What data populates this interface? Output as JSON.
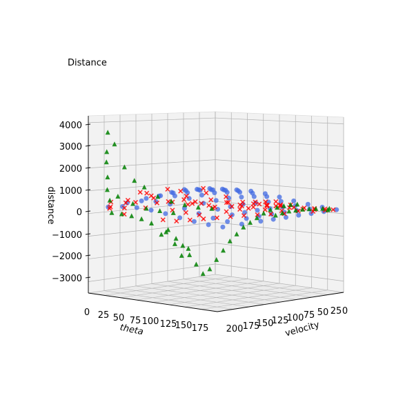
{
  "chart_data": {
    "type": "scatter3d",
    "title": "Distance",
    "xlabel": "theta",
    "ylabel": "velocity",
    "zlabel": "distance",
    "x_ticks": [
      "0",
      "25",
      "50",
      "75",
      "100",
      "125",
      "150",
      "175"
    ],
    "y_ticks": [
      "200",
      "175",
      "150",
      "125",
      "100",
      "75",
      "50",
      "25",
      "0"
    ],
    "z_ticks": [
      "4000",
      "3000",
      "2000",
      "1000",
      "0",
      "−1000",
      "−2000",
      "−3000"
    ],
    "xlim": [
      0,
      180
    ],
    "ylim": [
      0,
      200
    ],
    "zlim": [
      -3500,
      4300
    ],
    "grid": true,
    "colors": {
      "surface": "#4169e1",
      "red_series": "#ff0000",
      "green_series": "#008000",
      "pane": "#f2f2f2",
      "grid": "#b0b0b0"
    },
    "series": [
      {
        "marker": "circle",
        "color": "#4169e1",
        "points": [
          [
            10,
            0,
            200
          ],
          [
            10,
            20,
            300
          ],
          [
            10,
            40,
            350
          ],
          [
            10,
            60,
            420
          ],
          [
            10,
            80,
            380
          ],
          [
            10,
            100,
            300
          ],
          [
            10,
            120,
            280
          ],
          [
            10,
            150,
            210
          ],
          [
            10,
            180,
            150
          ],
          [
            30,
            0,
            250
          ],
          [
            30,
            20,
            330
          ],
          [
            30,
            40,
            420
          ],
          [
            30,
            60,
            500
          ],
          [
            30,
            80,
            540
          ],
          [
            30,
            100,
            520
          ],
          [
            30,
            120,
            480
          ],
          [
            30,
            150,
            380
          ],
          [
            30,
            180,
            260
          ],
          [
            50,
            0,
            280
          ],
          [
            50,
            20,
            380
          ],
          [
            50,
            40,
            480
          ],
          [
            50,
            60,
            580
          ],
          [
            50,
            80,
            640
          ],
          [
            50,
            100,
            620
          ],
          [
            50,
            120,
            560
          ],
          [
            50,
            150,
            440
          ],
          [
            50,
            180,
            300
          ],
          [
            70,
            0,
            260
          ],
          [
            70,
            20,
            360
          ],
          [
            70,
            40,
            480
          ],
          [
            70,
            60,
            560
          ],
          [
            70,
            80,
            620
          ],
          [
            70,
            100,
            600
          ],
          [
            70,
            120,
            540
          ],
          [
            70,
            150,
            420
          ],
          [
            70,
            180,
            280
          ],
          [
            90,
            0,
            200
          ],
          [
            90,
            20,
            300
          ],
          [
            90,
            40,
            380
          ],
          [
            90,
            60,
            440
          ],
          [
            90,
            80,
            480
          ],
          [
            90,
            100,
            460
          ],
          [
            90,
            120,
            420
          ],
          [
            90,
            150,
            320
          ],
          [
            90,
            180,
            220
          ],
          [
            110,
            0,
            120
          ],
          [
            110,
            20,
            180
          ],
          [
            110,
            40,
            240
          ],
          [
            110,
            60,
            280
          ],
          [
            110,
            80,
            300
          ],
          [
            110,
            100,
            280
          ],
          [
            110,
            120,
            250
          ],
          [
            110,
            150,
            190
          ],
          [
            110,
            180,
            130
          ],
          [
            130,
            0,
            60
          ],
          [
            130,
            20,
            80
          ],
          [
            130,
            40,
            100
          ],
          [
            130,
            60,
            120
          ],
          [
            130,
            80,
            130
          ],
          [
            130,
            100,
            120
          ],
          [
            130,
            120,
            100
          ],
          [
            130,
            150,
            80
          ],
          [
            130,
            180,
            60
          ],
          [
            150,
            0,
            20
          ],
          [
            150,
            20,
            30
          ],
          [
            150,
            40,
            40
          ],
          [
            150,
            60,
            50
          ],
          [
            150,
            80,
            50
          ],
          [
            150,
            100,
            40
          ],
          [
            150,
            120,
            30
          ],
          [
            150,
            150,
            20
          ],
          [
            150,
            180,
            10
          ],
          [
            170,
            0,
            0
          ],
          [
            170,
            20,
            0
          ],
          [
            170,
            40,
            0
          ],
          [
            170,
            60,
            10
          ],
          [
            170,
            80,
            0
          ],
          [
            170,
            100,
            0
          ],
          [
            170,
            120,
            0
          ],
          [
            170,
            150,
            0
          ],
          [
            170,
            180,
            0
          ]
        ]
      },
      {
        "marker": "x",
        "color": "#ff0000",
        "points": [
          [
            5,
            170,
            300
          ],
          [
            8,
            150,
            200
          ],
          [
            12,
            180,
            100
          ],
          [
            15,
            160,
            50
          ],
          [
            18,
            130,
            -50
          ],
          [
            22,
            190,
            250
          ],
          [
            25,
            120,
            150
          ],
          [
            28,
            175,
            -100
          ],
          [
            32,
            110,
            200
          ],
          [
            35,
            165,
            400
          ],
          [
            38,
            140,
            500
          ],
          [
            42,
            185,
            600
          ],
          [
            45,
            100,
            300
          ],
          [
            48,
            155,
            700
          ],
          [
            52,
            90,
            200
          ],
          [
            55,
            170,
            900
          ],
          [
            58,
            120,
            800
          ],
          [
            62,
            145,
            1000
          ],
          [
            65,
            80,
            300
          ],
          [
            68,
            195,
            1100
          ],
          [
            72,
            100,
            900
          ],
          [
            75,
            130,
            700
          ],
          [
            78,
            70,
            200
          ],
          [
            82,
            160,
            600
          ],
          [
            85,
            110,
            800
          ],
          [
            88,
            60,
            100
          ],
          [
            92,
            140,
            500
          ],
          [
            95,
            90,
            600
          ],
          [
            98,
            50,
            150
          ],
          [
            102,
            125,
            400
          ],
          [
            105,
            75,
            350
          ],
          [
            108,
            40,
            100
          ],
          [
            112,
            100,
            300
          ],
          [
            115,
            60,
            250
          ],
          [
            118,
            30,
            50
          ],
          [
            122,
            85,
            200
          ],
          [
            125,
            45,
            150
          ],
          [
            128,
            20,
            0
          ],
          [
            132,
            70,
            120
          ],
          [
            135,
            35,
            80
          ],
          [
            138,
            15,
            0
          ],
          [
            142,
            55,
            60
          ],
          [
            145,
            25,
            20
          ],
          [
            148,
            10,
            0
          ],
          [
            152,
            40,
            30
          ],
          [
            155,
            18,
            10
          ],
          [
            158,
            5,
            0
          ],
          [
            162,
            28,
            10
          ],
          [
            165,
            12,
            0
          ],
          [
            168,
            3,
            0
          ],
          [
            20,
            90,
            -300
          ],
          [
            30,
            80,
            -400
          ],
          [
            40,
            70,
            -500
          ],
          [
            50,
            60,
            -200
          ],
          [
            60,
            50,
            -350
          ],
          [
            70,
            40,
            -250
          ],
          [
            80,
            30,
            -150
          ],
          [
            90,
            20,
            -100
          ],
          [
            100,
            10,
            -60
          ],
          [
            110,
            5,
            -30
          ],
          [
            15,
            60,
            -200
          ],
          [
            25,
            50,
            -150
          ],
          [
            35,
            40,
            -300
          ],
          [
            45,
            30,
            -100
          ],
          [
            55,
            20,
            -250
          ],
          [
            65,
            10,
            -80
          ],
          [
            75,
            5,
            -50
          ],
          [
            85,
            0,
            -20
          ],
          [
            95,
            25,
            -40
          ],
          [
            105,
            15,
            -10
          ],
          [
            60,
            150,
            -300
          ],
          [
            70,
            140,
            -350
          ],
          [
            80,
            130,
            -300
          ],
          [
            90,
            120,
            -250
          ],
          [
            100,
            110,
            -200
          ],
          [
            110,
            100,
            -150
          ],
          [
            120,
            90,
            -100
          ],
          [
            130,
            80,
            -60
          ],
          [
            140,
            70,
            -30
          ],
          [
            150,
            60,
            -10
          ]
        ]
      },
      {
        "marker": "triangle",
        "color": "#008000",
        "points": [
          [
            5,
            175,
            3300
          ],
          [
            8,
            180,
            2500
          ],
          [
            10,
            170,
            2800
          ],
          [
            12,
            185,
            2100
          ],
          [
            15,
            160,
            1800
          ],
          [
            18,
            190,
            1500
          ],
          [
            20,
            150,
            1200
          ],
          [
            22,
            195,
            1000
          ],
          [
            25,
            140,
            900
          ],
          [
            28,
            185,
            700
          ],
          [
            30,
            200,
            600
          ],
          [
            35,
            130,
            500
          ],
          [
            40,
            175,
            400
          ],
          [
            45,
            120,
            300
          ],
          [
            50,
            165,
            200
          ],
          [
            55,
            110,
            150
          ],
          [
            60,
            155,
            100
          ],
          [
            65,
            100,
            50
          ],
          [
            70,
            145,
            20
          ],
          [
            75,
            90,
            0
          ],
          [
            20,
            100,
            -1200
          ],
          [
            25,
            90,
            -1500
          ],
          [
            30,
            85,
            -1800
          ],
          [
            35,
            80,
            -2200
          ],
          [
            40,
            75,
            -2600
          ],
          [
            45,
            70,
            -3000
          ],
          [
            50,
            65,
            -2800
          ],
          [
            55,
            60,
            -2400
          ],
          [
            60,
            55,
            -2000
          ],
          [
            65,
            50,
            -1600
          ],
          [
            70,
            45,
            -1300
          ],
          [
            75,
            40,
            -1000
          ],
          [
            80,
            35,
            -800
          ],
          [
            85,
            30,
            -600
          ],
          [
            90,
            25,
            -400
          ],
          [
            95,
            20,
            -250
          ],
          [
            100,
            15,
            -150
          ],
          [
            105,
            10,
            -80
          ],
          [
            110,
            5,
            -30
          ],
          [
            115,
            0,
            -10
          ],
          [
            120,
            40,
            -300
          ],
          [
            125,
            35,
            -200
          ],
          [
            130,
            30,
            -120
          ],
          [
            135,
            25,
            -80
          ],
          [
            140,
            20,
            -40
          ],
          [
            145,
            15,
            -20
          ],
          [
            150,
            10,
            -10
          ],
          [
            155,
            5,
            0
          ],
          [
            160,
            0,
            0
          ],
          [
            165,
            8,
            -5
          ],
          [
            40,
            130,
            -1100
          ],
          [
            45,
            125,
            -900
          ],
          [
            50,
            120,
            -1500
          ],
          [
            55,
            115,
            -2000
          ],
          [
            60,
            110,
            -1700
          ],
          [
            35,
            140,
            -600
          ],
          [
            30,
            150,
            -400
          ],
          [
            25,
            160,
            -250
          ],
          [
            20,
            170,
            -150
          ],
          [
            15,
            180,
            -80
          ]
        ]
      }
    ]
  }
}
